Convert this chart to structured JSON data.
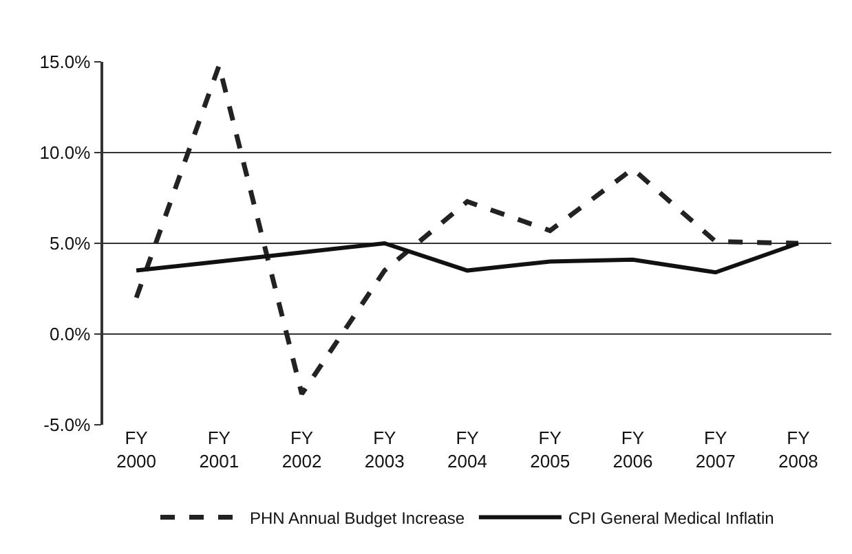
{
  "chart_data": {
    "type": "line",
    "categories": [
      "FY\n2000",
      "FY\n2001",
      "FY\n2002",
      "FY\n2003",
      "FY\n2004",
      "FY\n2005",
      "FY\n2006",
      "FY\n2007",
      "FY\n2008"
    ],
    "series": [
      {
        "name": "PHN Annual Budget Increase",
        "color": "#222222",
        "line_style": "dashed",
        "values": [
          2.0,
          14.8,
          -3.3,
          3.5,
          7.3,
          5.7,
          9.1,
          5.1,
          5.0
        ]
      },
      {
        "name": "CPI General Medical Inflatin",
        "color": "#111111",
        "line_style": "solid",
        "values": [
          3.5,
          4.0,
          4.5,
          5.0,
          3.5,
          4.0,
          4.1,
          3.4,
          5.0
        ]
      }
    ],
    "ylim": [
      -5,
      15
    ],
    "yticks": [
      {
        "value": -5,
        "label": "-5.0%"
      },
      {
        "value": 0,
        "label": "0.0%"
      },
      {
        "value": 5,
        "label": "5.0%"
      },
      {
        "value": 10,
        "label": "10.0%"
      },
      {
        "value": 15,
        "label": "15.0%"
      }
    ],
    "grid": "y",
    "legend": "bottom",
    "marker": "none"
  }
}
